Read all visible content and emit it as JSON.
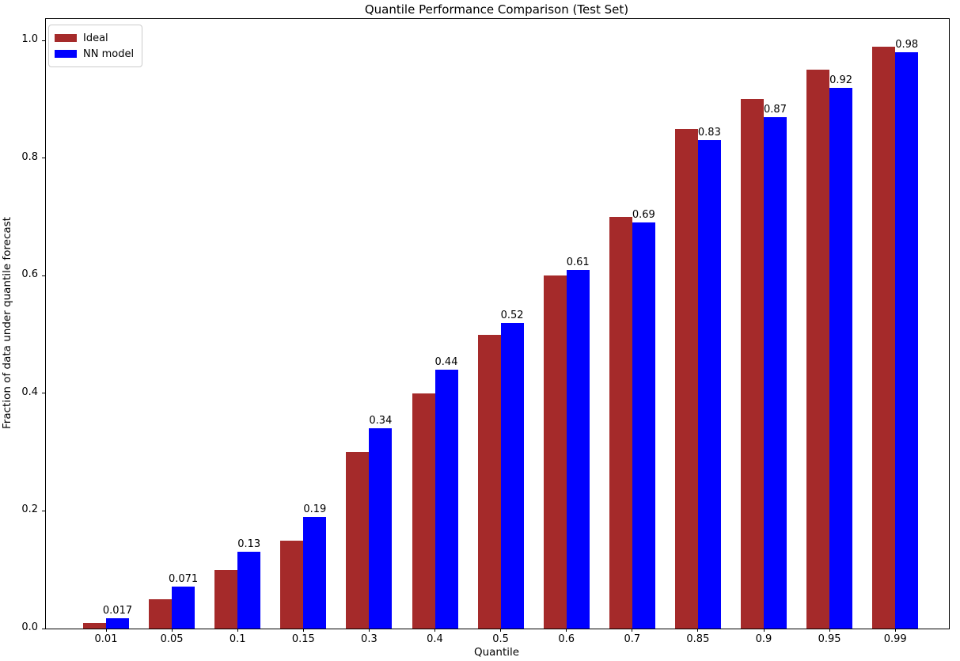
{
  "chart_data": {
    "type": "bar",
    "title": "Quantile Performance Comparison (Test Set)",
    "xlabel": "Quantile",
    "ylabel": "Fraction of data under quantile forecast",
    "categories": [
      "0.01",
      "0.05",
      "0.1",
      "0.15",
      "0.3",
      "0.4",
      "0.5",
      "0.6",
      "0.7",
      "0.85",
      "0.9",
      "0.95",
      "0.99"
    ],
    "series": [
      {
        "name": "Ideal",
        "color": "#A52A2A",
        "values": [
          0.01,
          0.05,
          0.1,
          0.15,
          0.3,
          0.4,
          0.5,
          0.6,
          0.7,
          0.85,
          0.9,
          0.95,
          0.99
        ]
      },
      {
        "name": "NN model",
        "color": "#0000FF",
        "values": [
          0.017,
          0.071,
          0.13,
          0.19,
          0.34,
          0.44,
          0.52,
          0.61,
          0.69,
          0.83,
          0.87,
          0.92,
          0.98
        ],
        "value_labels": [
          "0.017",
          "0.071",
          "0.13",
          "0.19",
          "0.34",
          "0.44",
          "0.52",
          "0.61",
          "0.69",
          "0.83",
          "0.87",
          "0.92",
          "0.98"
        ]
      }
    ],
    "yticks": [
      "0.0",
      "0.2",
      "0.4",
      "0.6",
      "0.8",
      "1.0"
    ],
    "ylim": [
      0,
      1.0365
    ],
    "grid": false,
    "legend_position": "upper-left",
    "value_labels_shown_for": "NN model",
    "colors": {
      "ideal": "#A52A2A",
      "nn_model": "#0000FF",
      "text": "#000000",
      "spine": "#000000",
      "legend_border": "#cccccc"
    }
  }
}
